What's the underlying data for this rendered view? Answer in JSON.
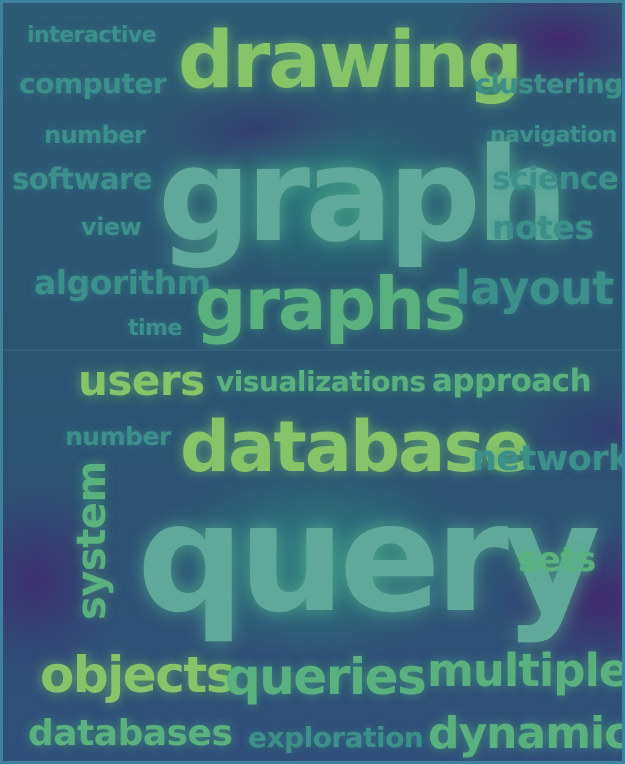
{
  "top_panel": {
    "words": {
      "interactive": "interactive",
      "drawing": "drawing",
      "computer": "computer",
      "clustering": "clustering",
      "number": "number",
      "navigation": "navigation",
      "software": "software",
      "graph": "graph",
      "science": "science",
      "view": "view",
      "notes": "notes",
      "algorithm": "algorithm",
      "graphs": "graphs",
      "layout": "layout",
      "time": "time"
    }
  },
  "bottom_panel": {
    "words": {
      "users": "users",
      "visualizations": "visualizations",
      "approach": "approach",
      "number": "number",
      "database": "database",
      "network": "network",
      "system": "system",
      "query": "query",
      "sets": "sets",
      "objects": "objects",
      "queries": "queries",
      "multiple": "multiple",
      "databases": "databases",
      "exploration": "exploration",
      "dynamic": "dynamic"
    }
  },
  "colors": {
    "background": "#2c5b73",
    "heat_high": "#86c46a",
    "heat_mid": "#5ab07f",
    "heat_low": "#3d8f8a",
    "heat_cold": "#481a6c"
  }
}
